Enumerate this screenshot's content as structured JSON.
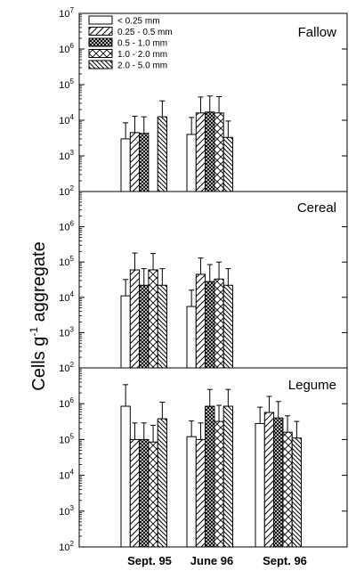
{
  "chart_data": {
    "type": "bar",
    "ylabel": "Cells g",
    "ylabel_sup": "-1",
    "ylabel_tail": " aggregate",
    "yscale": "log",
    "ylim": [
      100,
      10000000
    ],
    "error_bars": true,
    "categories": [
      "Sept. 95",
      "June 96",
      "Sept. 96"
    ],
    "legend": [
      {
        "name": "< 0.25 mm",
        "pattern": "blank"
      },
      {
        "name": "0.25 - 0.5 mm",
        "pattern": "diag-right"
      },
      {
        "name": "0.5 - 1.0 mm",
        "pattern": "crosshatch"
      },
      {
        "name": "1.0 - 2.0 mm",
        "pattern": "diamond"
      },
      {
        "name": "2.0 - 5.0 mm",
        "pattern": "diag-left"
      }
    ],
    "legend_location": "upper left of top panel",
    "panels": [
      {
        "title": "Fallow",
        "yticks": [
          "10^2",
          "10^3",
          "10^4",
          "10^5",
          "10^6",
          "10^7"
        ],
        "series": [
          {
            "name": "< 0.25 mm",
            "values": [
              3000,
              4000,
              null
            ],
            "err_upper": [
              8500,
              12000,
              null
            ]
          },
          {
            "name": "0.25 - 0.5 mm",
            "values": [
              4500,
              16000,
              null
            ],
            "err_upper": [
              13000,
              45000,
              null
            ]
          },
          {
            "name": "0.5 - 1.0 mm",
            "values": [
              4300,
              17000,
              null
            ],
            "err_upper": [
              12500,
              48000,
              null
            ]
          },
          {
            "name": "1.0 - 2.0 mm",
            "values": [
              null,
              16000,
              null
            ],
            "err_upper": [
              null,
              46000,
              null
            ]
          },
          {
            "name": "2.0 - 5.0 mm",
            "values": [
              12500,
              3300,
              null
            ],
            "err_upper": [
              35000,
              9500,
              null
            ]
          }
        ]
      },
      {
        "title": "Cereal",
        "yticks": [
          "10^2",
          "10^3",
          "10^4",
          "10^5",
          "10^6"
        ],
        "series": [
          {
            "name": "< 0.25 mm",
            "values": [
              11000,
              5500,
              null
            ],
            "err_upper": [
              32000,
              16000,
              null
            ]
          },
          {
            "name": "0.25 - 0.5 mm",
            "values": [
              60000,
              45000,
              null
            ],
            "err_upper": [
              180000,
              130000,
              null
            ]
          },
          {
            "name": "0.5 - 1.0 mm",
            "values": [
              22000,
              28000,
              null
            ],
            "err_upper": [
              65000,
              85000,
              null
            ]
          },
          {
            "name": "1.0 - 2.0 mm",
            "values": [
              60000,
              33000,
              null
            ],
            "err_upper": [
              175000,
              100000,
              null
            ]
          },
          {
            "name": "2.0 - 5.0 mm",
            "values": [
              22000,
              22000,
              null
            ],
            "err_upper": [
              65000,
              65000,
              null
            ]
          }
        ]
      },
      {
        "title": "Legume",
        "yticks": [
          "10^2",
          "10^3",
          "10^4",
          "10^5",
          "10^6"
        ],
        "series": [
          {
            "name": "< 0.25 mm",
            "values": [
              850000,
              120000,
              280000
            ],
            "err_upper": [
              3400000,
              330000,
              800000
            ]
          },
          {
            "name": "0.25 - 0.5 mm",
            "values": [
              100000,
              100000,
              570000
            ],
            "err_upper": [
              290000,
              290000,
              1600000
            ]
          },
          {
            "name": "0.5 - 1.0 mm",
            "values": [
              100000,
              850000,
              400000
            ],
            "err_upper": [
              290000,
              2500000,
              1150000
            ]
          },
          {
            "name": "1.0 - 2.0 mm",
            "values": [
              85000,
              320000,
              160000
            ],
            "err_upper": [
              250000,
              900000,
              460000
            ]
          },
          {
            "name": "2.0 - 5.0 mm",
            "values": [
              380000,
              850000,
              110000
            ],
            "err_upper": [
              1100000,
              2500000,
              320000
            ]
          }
        ]
      }
    ]
  }
}
